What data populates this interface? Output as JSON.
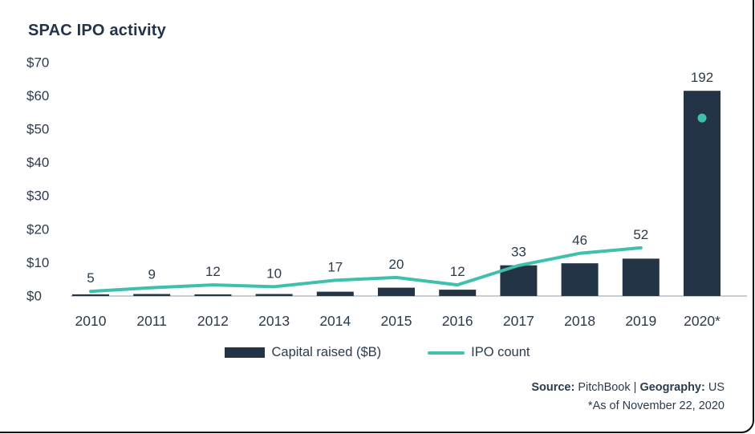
{
  "title": "SPAC IPO activity",
  "colors": {
    "navy": "#243447",
    "teal": "#3FC0AC",
    "axis_line": "#C9CCD0",
    "text": "#2B3B4E"
  },
  "chart_data": {
    "type": "bar+line combo",
    "title": "SPAC IPO activity",
    "categories": [
      "2010",
      "2011",
      "2012",
      "2013",
      "2014",
      "2015",
      "2016",
      "2017",
      "2018",
      "2019",
      "2020*"
    ],
    "series": [
      {
        "name": "Capital raised ($B)",
        "type": "bar",
        "color": "#243447",
        "values": [
          0.5,
          0.6,
          0.5,
          0.6,
          1.3,
          2.5,
          1.9,
          9.2,
          9.8,
          11.2,
          61.5
        ]
      },
      {
        "name": "IPO count",
        "type": "line",
        "color": "#3FC0AC",
        "values": [
          5,
          9,
          12,
          10,
          17,
          20,
          12,
          33,
          46,
          52,
          192
        ],
        "note": "plotted as line through 2019; 2020* shown as isolated dot"
      }
    ],
    "value_labels": [
      "5",
      "9",
      "12",
      "10",
      "17",
      "20",
      "12",
      "33",
      "46",
      "52",
      "192"
    ],
    "y_axis": {
      "ticks": [
        "$70",
        "$60",
        "$50",
        "$40",
        "$30",
        "$20",
        "$10",
        "$0"
      ],
      "min": 0,
      "max": 70,
      "unit": "$B"
    },
    "secondary_scale_max": 252,
    "grid": false,
    "legend_position": "bottom-center"
  },
  "legend": {
    "bar_label": "Capital raised ($B)",
    "line_label": "IPO count"
  },
  "footer": {
    "source_label": "Source:",
    "source_value": " PitchBook | ",
    "geography_label": "Geography:",
    "geography_value": " US",
    "asof": "*As of November 22, 2020"
  }
}
